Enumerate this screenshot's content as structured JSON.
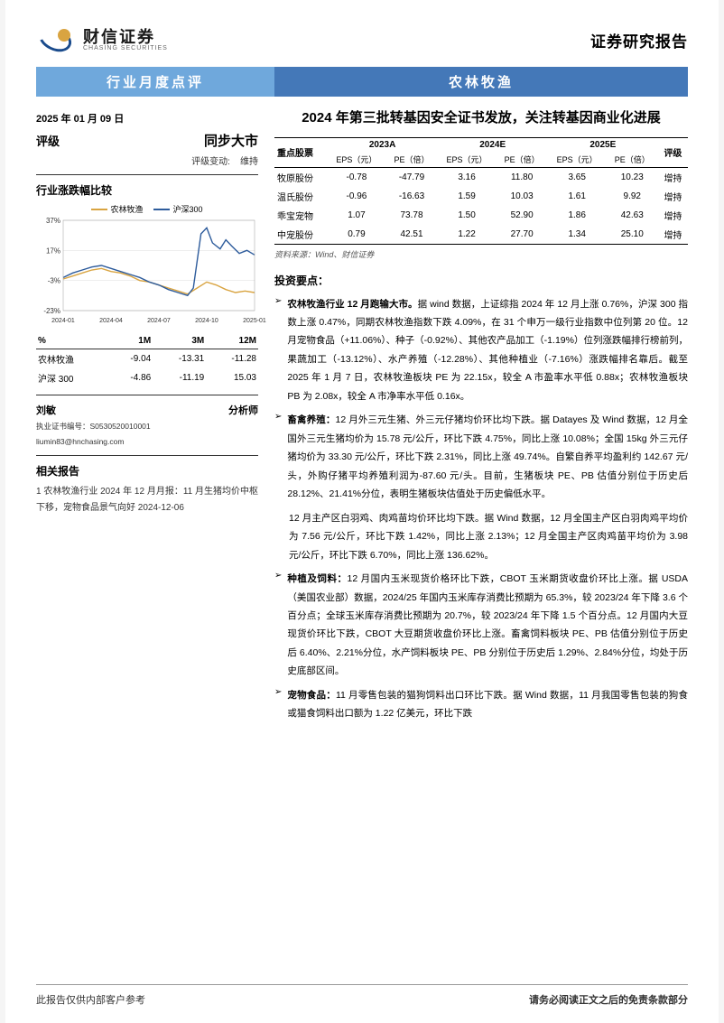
{
  "header": {
    "logo_cn": "财信证券",
    "logo_en": "CHASING SECURITIES",
    "report_type": "证券研究报告"
  },
  "banner": {
    "left": "行业月度点评",
    "right": "农林牧渔"
  },
  "title": "2024 年第三批转基因安全证书发放，关注转基因商业化进展",
  "sidebar": {
    "date": "2025 年 01 月 09 日",
    "rating": {
      "label": "评级",
      "value": "同步大市",
      "change_label": "评级变动:",
      "change_value": "维持"
    },
    "chart_section": {
      "heading": "行业涨跌幅比较",
      "legend": [
        {
          "name": "农林牧渔",
          "color": "#d9a441"
        },
        {
          "name": "沪深300",
          "color": "#2e5c9c"
        }
      ],
      "x_labels": [
        "2024-01",
        "2024-04",
        "2024-07",
        "2024-10",
        "2025-01"
      ],
      "y_ticks": [
        -23,
        -3,
        17,
        37
      ],
      "y_min": -23,
      "y_max": 37,
      "series_agri": {
        "color": "#d9a441",
        "points": [
          [
            0,
            -2
          ],
          [
            0.05,
            0
          ],
          [
            0.1,
            2
          ],
          [
            0.15,
            4
          ],
          [
            0.2,
            5
          ],
          [
            0.25,
            3
          ],
          [
            0.3,
            2
          ],
          [
            0.35,
            0
          ],
          [
            0.4,
            -3
          ],
          [
            0.45,
            -4
          ],
          [
            0.5,
            -6
          ],
          [
            0.55,
            -8
          ],
          [
            0.6,
            -10
          ],
          [
            0.65,
            -12
          ],
          [
            0.7,
            -8
          ],
          [
            0.75,
            -4
          ],
          [
            0.8,
            -6
          ],
          [
            0.85,
            -9
          ],
          [
            0.9,
            -11
          ],
          [
            0.95,
            -10
          ],
          [
            1,
            -11
          ]
        ]
      },
      "series_csi": {
        "color": "#2e5c9c",
        "points": [
          [
            0,
            -1
          ],
          [
            0.05,
            2
          ],
          [
            0.1,
            4
          ],
          [
            0.15,
            6
          ],
          [
            0.2,
            7
          ],
          [
            0.25,
            5
          ],
          [
            0.3,
            3
          ],
          [
            0.35,
            1
          ],
          [
            0.4,
            -1
          ],
          [
            0.45,
            -4
          ],
          [
            0.5,
            -6
          ],
          [
            0.55,
            -9
          ],
          [
            0.6,
            -11
          ],
          [
            0.65,
            -13
          ],
          [
            0.68,
            -8
          ],
          [
            0.7,
            10
          ],
          [
            0.72,
            28
          ],
          [
            0.75,
            32
          ],
          [
            0.78,
            22
          ],
          [
            0.82,
            18
          ],
          [
            0.85,
            24
          ],
          [
            0.88,
            20
          ],
          [
            0.92,
            15
          ],
          [
            0.96,
            17
          ],
          [
            1,
            14
          ]
        ]
      }
    },
    "perf": {
      "columns": [
        "%",
        "1M",
        "3M",
        "12M"
      ],
      "rows": [
        [
          "农林牧渔",
          "-9.04",
          "-13.31",
          "-11.28"
        ],
        [
          "沪深 300",
          "-4.86",
          "-11.19",
          "15.03"
        ]
      ]
    },
    "analyst": {
      "name": "刘敏",
      "role": "分析师",
      "cert": "执业证书编号：S0530520010001",
      "email": "liumin83@hnchasing.com"
    },
    "related": {
      "heading": "相关报告",
      "items": [
        "1 农林牧渔行业 2024 年 12 月月报：11 月生猪均价中枢下移，宠物食品景气向好 2024-12-06"
      ]
    }
  },
  "stock_table": {
    "col1": "重点股票",
    "year_cols": [
      "2023A",
      "2024E",
      "2025E"
    ],
    "sub_cols": [
      "EPS（元）",
      "PE（倍）"
    ],
    "rating_col": "评级",
    "rows": [
      {
        "name": "牧原股份",
        "v": [
          "-0.78",
          "-47.79",
          "3.16",
          "11.80",
          "3.65",
          "10.23"
        ],
        "rating": "增持"
      },
      {
        "name": "温氏股份",
        "v": [
          "-0.96",
          "-16.63",
          "1.59",
          "10.03",
          "1.61",
          "9.92"
        ],
        "rating": "增持"
      },
      {
        "name": "乖宝宠物",
        "v": [
          "1.07",
          "73.78",
          "1.50",
          "52.90",
          "1.86",
          "42.63"
        ],
        "rating": "增持"
      },
      {
        "name": "中宠股份",
        "v": [
          "0.79",
          "42.51",
          "1.22",
          "27.70",
          "1.34",
          "25.10"
        ],
        "rating": "增持"
      }
    ],
    "source": "资料来源：Wind、财信证券"
  },
  "investment": {
    "heading": "投资要点：",
    "bullets": [
      {
        "bold": "农林牧渔行业 12 月跑输大市。",
        "text": "据 wind 数据，上证综指 2024 年 12 月上涨 0.76%，沪深 300 指数上涨 0.47%，同期农林牧渔指数下跌 4.09%，在 31 个申万一级行业指数中位列第 20 位。12 月宠物食品（+11.06%）、种子（-0.92%）、其他农产品加工（-1.19%）位列涨跌幅排行榜前列，果蔬加工（-13.12%）、水产养殖（-12.28%）、其他种植业（-7.16%）涨跌幅排名靠后。截至 2025 年 1 月 7 日，农林牧渔板块 PE 为 22.15x，较全 A 市盈率水平低 0.88x；农林牧渔板块 PB 为 2.08x，较全 A 市净率水平低 0.16x。"
      },
      {
        "bold": "畜禽养殖：",
        "text": "12 月外三元生猪、外三元仔猪均价环比均下跌。据 Datayes 及 Wind 数据，12 月全国外三元生猪均价为 15.78 元/公斤，环比下跌 4.75%，同比上涨 10.08%；全国 15kg 外三元仔猪均价为 33.30 元/公斤，环比下跌 2.31%，同比上涨 49.74%。自繁自养平均盈利约 142.67 元/头，外购仔猪平均养殖利润为-87.60 元/头。目前，生猪板块 PE、PB 估值分别位于历史后 28.12%、21.41%分位，表明生猪板块估值处于历史偏低水平。",
        "continuation": "12 月主产区白羽鸡、肉鸡苗均价环比均下跌。据 Wind 数据，12 月全国主产区白羽肉鸡平均价为 7.56 元/公斤，环比下跌 1.42%，同比上涨 2.13%；12 月全国主产区肉鸡苗平均价为 3.98 元/公斤，环比下跌 6.70%，同比上涨 136.62%。"
      },
      {
        "bold": "种植及饲料：",
        "text": "12 月国内玉米现货价格环比下跌，CBOT 玉米期货收盘价环比上涨。据 USDA（美国农业部）数据，2024/25 年国内玉米库存消费比预期为 65.3%，较 2023/24 年下降 3.6 个百分点；全球玉米库存消费比预期为 20.7%，较 2023/24 年下降 1.5 个百分点。12 月国内大豆现货价环比下跌，CBOT 大豆期货收盘价环比上涨。畜禽饲料板块 PE、PB 估值分别位于历史后 6.40%、2.21%分位，水产饲料板块 PE、PB 分别位于历史后 1.29%、2.84%分位，均处于历史底部区间。"
      },
      {
        "bold": "宠物食品：",
        "text": "11 月零售包装的猫狗饲料出口环比下跌。据 Wind 数据，11 月我国零售包装的狗食或猫食饲料出口额为 1.22 亿美元，环比下跌"
      }
    ]
  },
  "footer": {
    "left": "此报告仅供内部客户参考",
    "right": "请务必阅读正文之后的免责条款部分"
  }
}
